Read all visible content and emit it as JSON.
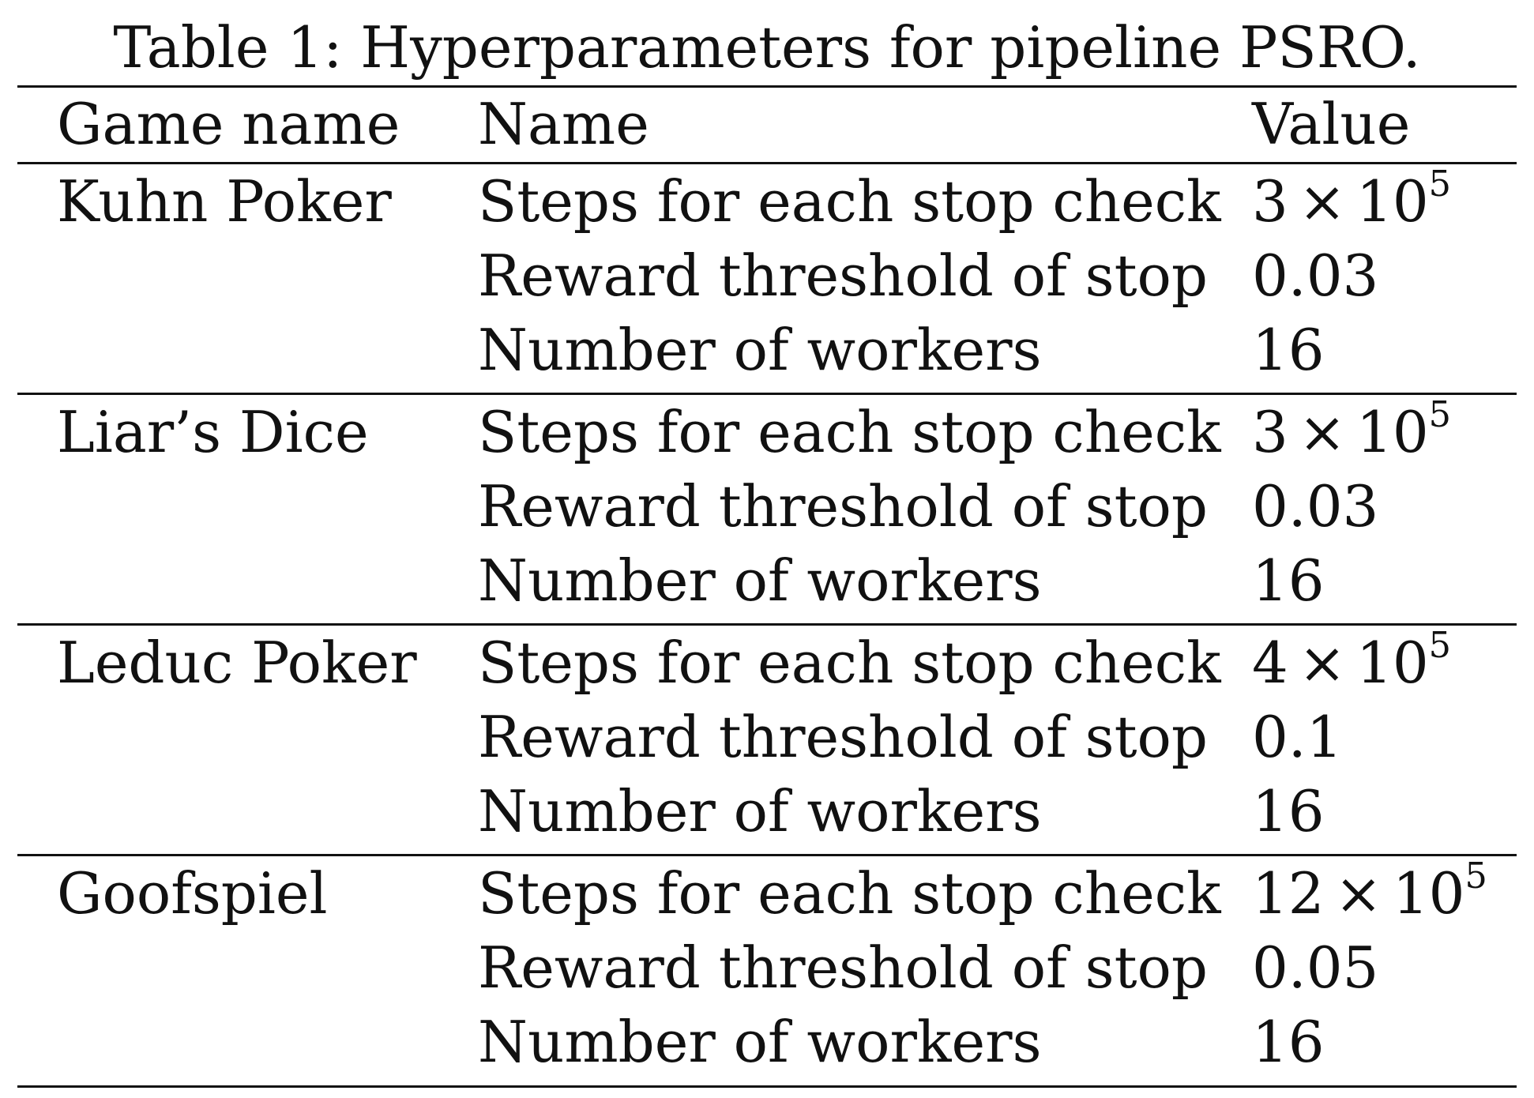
{
  "caption": "Table 1: Hyperparameters for pipeline PSRO.",
  "table": {
    "headers": [
      "Game name",
      "Name",
      "Value"
    ],
    "groups": [
      {
        "game": "Kuhn Poker",
        "rows": [
          {
            "name": "Steps for each stop check",
            "value_base": "3",
            "value_times": "×",
            "value_pow": "10",
            "value_exp": "5"
          },
          {
            "name": "Reward threshold of stop",
            "value": "0.03"
          },
          {
            "name": "Number of workers",
            "value": "16"
          }
        ]
      },
      {
        "game": "Liar’s Dice",
        "rows": [
          {
            "name": "Steps for each stop check",
            "value_base": "3",
            "value_times": "×",
            "value_pow": "10",
            "value_exp": "5"
          },
          {
            "name": "Reward threshold of stop",
            "value": "0.03"
          },
          {
            "name": "Number of workers",
            "value": "16"
          }
        ]
      },
      {
        "game": "Leduc Poker",
        "rows": [
          {
            "name": "Steps for each stop check",
            "value_base": "4",
            "value_times": "×",
            "value_pow": "10",
            "value_exp": "5"
          },
          {
            "name": "Reward threshold of stop",
            "value": "0.1"
          },
          {
            "name": "Number of workers",
            "value": "16"
          }
        ]
      },
      {
        "game": "Goofspiel",
        "rows": [
          {
            "name": "Steps for each stop check",
            "value_base": "12",
            "value_times": "×",
            "value_pow": "10",
            "value_exp": "5"
          },
          {
            "name": "Reward threshold of stop",
            "value": "0.05"
          },
          {
            "name": "Number of workers",
            "value": "16"
          }
        ]
      }
    ]
  }
}
